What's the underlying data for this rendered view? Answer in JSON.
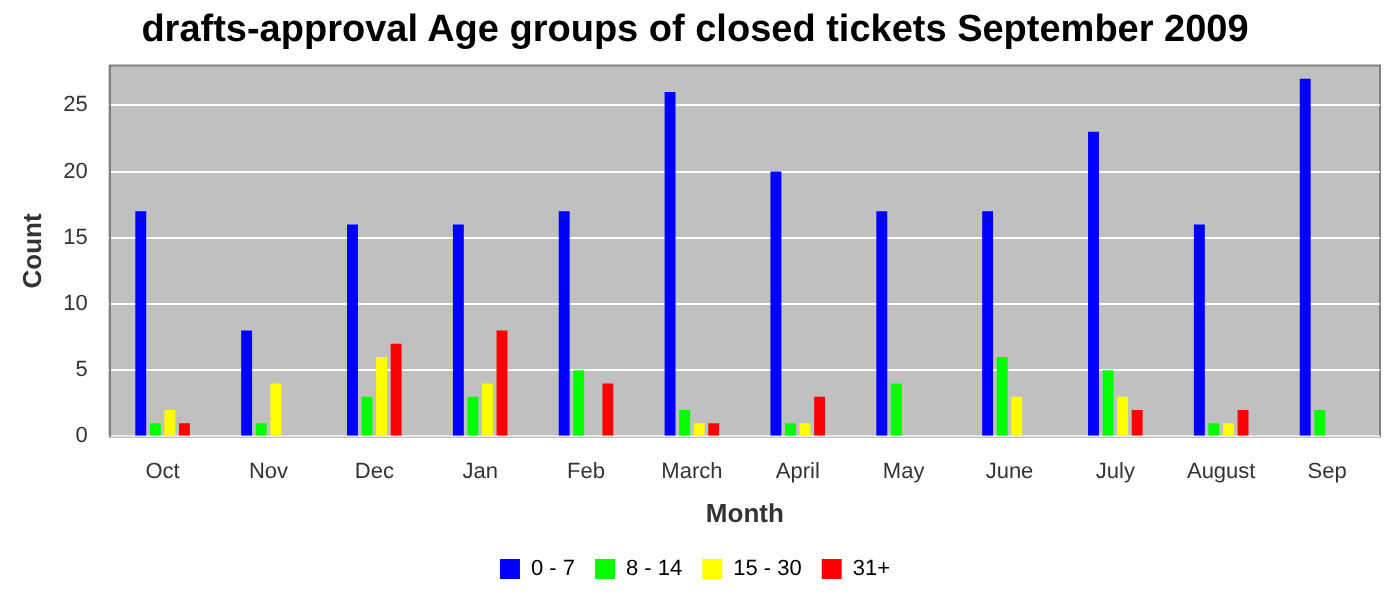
{
  "chart_data": {
    "type": "bar",
    "title": "drafts-approval Age groups of closed tickets September 2009",
    "xlabel": "Month",
    "ylabel": "Count",
    "categories": [
      "Oct",
      "Nov",
      "Dec",
      "Jan",
      "Feb",
      "March",
      "April",
      "May",
      "June",
      "July",
      "August",
      "Sep"
    ],
    "series": [
      {
        "name": "0 - 7",
        "color": "#0000ff",
        "values": [
          17,
          8,
          16,
          16,
          17,
          26,
          20,
          17,
          17,
          23,
          16,
          27
        ]
      },
      {
        "name": "8 - 14",
        "color": "#00ff00",
        "values": [
          1,
          1,
          3,
          3,
          5,
          2,
          1,
          4,
          6,
          5,
          1,
          2
        ]
      },
      {
        "name": "15 - 30",
        "color": "#ffff00",
        "values": [
          2,
          4,
          6,
          4,
          0,
          1,
          1,
          0,
          3,
          3,
          1,
          0
        ]
      },
      {
        "name": "31+",
        "color": "#ff0000",
        "values": [
          1,
          0,
          7,
          8,
          4,
          1,
          3,
          0,
          0,
          2,
          2,
          0
        ]
      }
    ],
    "ylim": [
      0,
      28
    ],
    "yticks": [
      0,
      5,
      10,
      15,
      20,
      25
    ],
    "grid": "y",
    "legend": "bottom"
  }
}
